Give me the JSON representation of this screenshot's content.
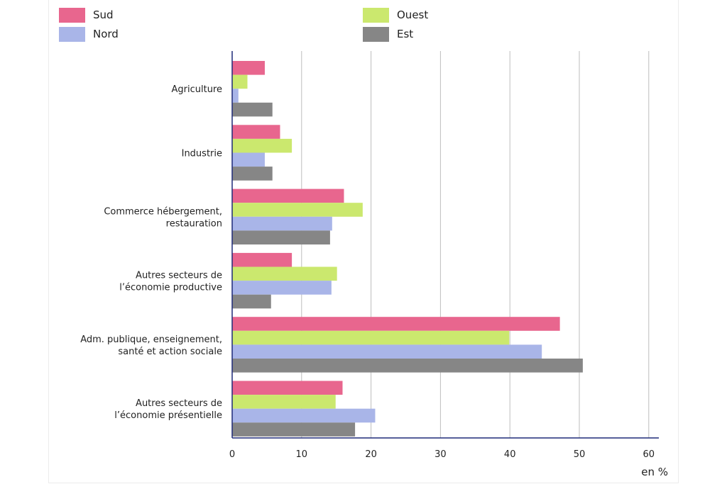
{
  "chart_data": {
    "type": "bar",
    "orientation": "horizontal",
    "categories": [
      [
        "Agriculture"
      ],
      [
        "Industrie"
      ],
      [
        "Commerce hébergement,",
        "restauration"
      ],
      [
        "Autres secteurs de",
        "l’économie productive"
      ],
      [
        "Adm. publique, enseignement,",
        "santé et action sociale"
      ],
      [
        "Autres secteurs de",
        "l’économie présentielle"
      ]
    ],
    "series": [
      {
        "name": "Sud",
        "color": "#e8668e",
        "values": [
          4.7,
          6.9,
          16.1,
          8.6,
          47.2,
          15.9
        ]
      },
      {
        "name": "Ouest",
        "color": "#cbe86e",
        "values": [
          2.2,
          8.6,
          18.8,
          15.1,
          39.9,
          14.9
        ]
      },
      {
        "name": "Nord",
        "color": "#a9b5e8",
        "values": [
          0.9,
          4.7,
          14.4,
          14.3,
          44.6,
          20.6
        ]
      },
      {
        "name": "Est",
        "color": "#868686",
        "values": [
          5.8,
          5.8,
          14.1,
          5.6,
          50.5,
          17.7
        ]
      }
    ],
    "xlim": [
      0,
      61.5
    ],
    "xticks": [
      0,
      10,
      20,
      30,
      40,
      50,
      60
    ],
    "xlabel": "en %",
    "grid": true,
    "legend_position": "top"
  }
}
